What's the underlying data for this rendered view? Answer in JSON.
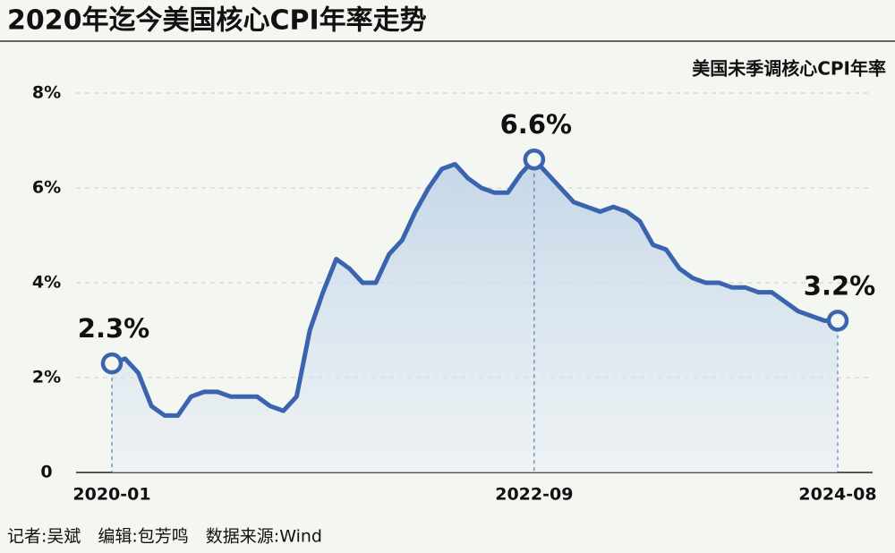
{
  "chart_data": {
    "type": "line",
    "title": "2020年迄今美国核心CPI年率走势",
    "source": "记者:吴斌　编辑:包芳鸣　数据来源:Wind",
    "categories": [
      "2020-01",
      null,
      null,
      null,
      null,
      null,
      null,
      null,
      null,
      null,
      null,
      null,
      null,
      null,
      null,
      null,
      null,
      null,
      null,
      null,
      null,
      null,
      null,
      null,
      null,
      null,
      null,
      null,
      null,
      null,
      null,
      null,
      "2022-09",
      null,
      null,
      null,
      null,
      null,
      null,
      null,
      null,
      null,
      null,
      null,
      null,
      null,
      null,
      null,
      null,
      null,
      null,
      null,
      null,
      null,
      null,
      "2024-08"
    ],
    "series": [
      {
        "name": "美国未季调核心CPI年率",
        "color": "#3a64ad",
        "values": [
          2.3,
          2.4,
          2.1,
          1.4,
          1.2,
          1.2,
          1.6,
          1.7,
          1.7,
          1.6,
          1.6,
          1.6,
          1.4,
          1.3,
          1.6,
          3.0,
          3.8,
          4.5,
          4.3,
          4.0,
          4.0,
          4.6,
          4.9,
          5.5,
          6.0,
          6.4,
          6.5,
          6.2,
          6.0,
          5.9,
          5.9,
          6.3,
          6.6,
          6.3,
          6.0,
          5.7,
          5.6,
          5.5,
          5.6,
          5.5,
          5.3,
          4.8,
          4.7,
          4.3,
          4.1,
          4.0,
          4.0,
          3.9,
          3.9,
          3.8,
          3.8,
          3.6,
          3.4,
          3.3,
          3.2,
          3.2
        ],
        "value_labels": [
          "2.3%",
          null,
          null,
          null,
          null,
          null,
          null,
          null,
          null,
          null,
          null,
          null,
          null,
          null,
          null,
          null,
          null,
          null,
          null,
          null,
          null,
          null,
          null,
          null,
          null,
          null,
          null,
          null,
          null,
          null,
          null,
          null,
          "6.6%",
          null,
          null,
          null,
          null,
          null,
          null,
          null,
          null,
          null,
          null,
          null,
          null,
          null,
          null,
          null,
          null,
          null,
          null,
          null,
          null,
          null,
          null,
          "3.2%"
        ]
      }
    ],
    "ylim": [
      0,
      8
    ],
    "yticks": [
      0,
      {
        "value": 2,
        "label": "2%"
      },
      {
        "value": 4,
        "label": "4%"
      },
      {
        "value": 6,
        "label": "6%"
      },
      {
        "value": 8,
        "label": "8%"
      }
    ],
    "grid": true,
    "legend": "top-right"
  }
}
